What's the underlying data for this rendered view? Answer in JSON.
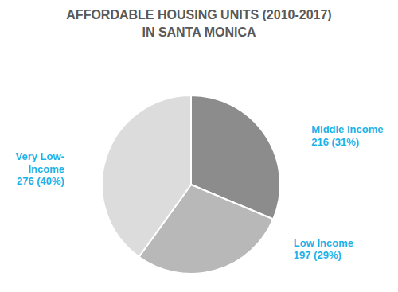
{
  "chart_data": {
    "type": "pie",
    "title": "AFFORDABLE HOUSING UNITS (2010-2017)",
    "subtitle": "IN SANTA MONICA",
    "categories": [
      "Middle Income",
      "Low Income",
      "Very Low-\nIncome"
    ],
    "values": [
      216,
      197,
      276
    ],
    "value_labels": [
      "216 (31%)",
      "197 (29%)",
      "276 (40%)"
    ],
    "colors": [
      "#8c8c8c",
      "#b8b8b8",
      "#dcdcdc"
    ]
  }
}
